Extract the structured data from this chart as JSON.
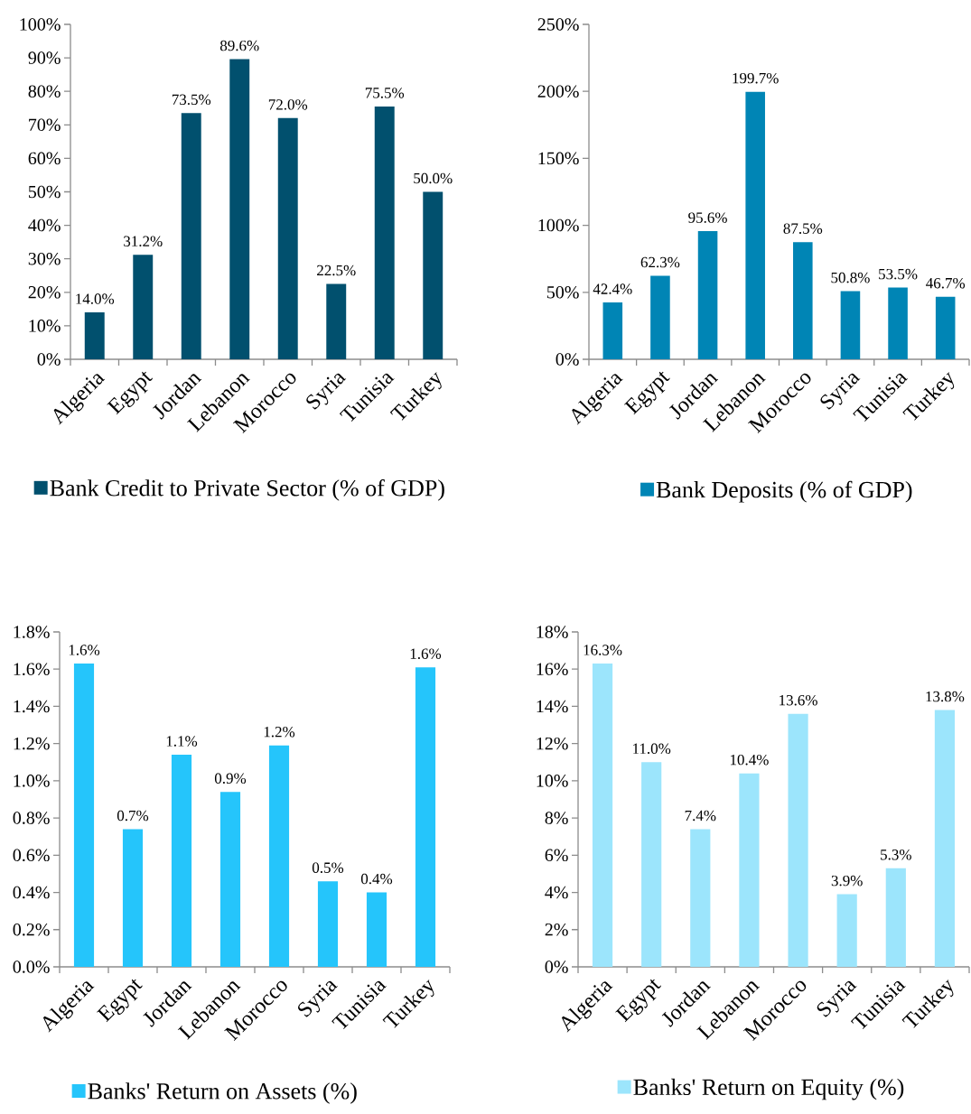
{
  "chart_data": [
    {
      "type": "bar",
      "categories": [
        "Algeria",
        "Egypt",
        "Jordan",
        "Lebanon",
        "Morocco",
        "Syria",
        "Tunisia",
        "Turkey"
      ],
      "series": [
        {
          "name": "Bank Credit to Private Sector (% of GDP)",
          "color": "#01506e",
          "values": [
            14.0,
            31.2,
            73.5,
            89.6,
            72.0,
            22.5,
            75.5,
            50.0
          ],
          "value_labels": [
            "14.0%",
            "31.2%",
            "73.5%",
            "89.6%",
            "72.0%",
            "22.5%",
            "75.5%",
            "50.0%"
          ]
        }
      ],
      "ylim": [
        0,
        100
      ],
      "yticks": [
        {
          "value": 0,
          "label": "0%"
        },
        {
          "value": 10,
          "label": "10%"
        },
        {
          "value": 20,
          "label": "20%"
        },
        {
          "value": 30,
          "label": "30%"
        },
        {
          "value": 40,
          "label": "40%"
        },
        {
          "value": 50,
          "label": "50%"
        },
        {
          "value": 60,
          "label": "60%"
        },
        {
          "value": 70,
          "label": "70%"
        },
        {
          "value": 80,
          "label": "80%"
        },
        {
          "value": 90,
          "label": "90%"
        },
        {
          "value": 100,
          "label": "100%"
        }
      ],
      "legend": "bottom"
    },
    {
      "type": "bar",
      "categories": [
        "Algeria",
        "Egypt",
        "Jordan",
        "Lebanon",
        "Morocco",
        "Syria",
        "Tunisia",
        "Turkey"
      ],
      "series": [
        {
          "name": "Bank Deposits (% of GDP)",
          "color": "#0085b5",
          "values": [
            42.4,
            62.3,
            95.6,
            199.7,
            87.5,
            50.8,
            53.5,
            46.7
          ],
          "value_labels": [
            "42.4%",
            "62.3%",
            "95.6%",
            "199.7%",
            "87.5%",
            "50.8%",
            "53.5%",
            "46.7%"
          ]
        }
      ],
      "ylim": [
        0,
        250
      ],
      "yticks": [
        {
          "value": 0,
          "label": "0%"
        },
        {
          "value": 50,
          "label": "50%"
        },
        {
          "value": 100,
          "label": "100%"
        },
        {
          "value": 150,
          "label": "150%"
        },
        {
          "value": 200,
          "label": "200%"
        },
        {
          "value": 250,
          "label": "250%"
        }
      ],
      "legend": "bottom"
    },
    {
      "type": "bar",
      "categories": [
        "Algeria",
        "Egypt",
        "Jordan",
        "Lebanon",
        "Morocco",
        "Syria",
        "Tunisia",
        "Turkey"
      ],
      "series": [
        {
          "name": "Banks' Return on Assets (%)",
          "color": "#25c5fb",
          "values": [
            1.63,
            0.74,
            1.14,
            0.94,
            1.19,
            0.46,
            0.4,
            1.61
          ],
          "value_labels": [
            "1.6%",
            "0.7%",
            "1.1%",
            "0.9%",
            "1.2%",
            "0.5%",
            "0.4%",
            "1.6%"
          ]
        }
      ],
      "ylim": [
        0,
        1.8
      ],
      "yticks": [
        {
          "value": 0,
          "label": "0.0%"
        },
        {
          "value": 0.2,
          "label": "0.2%"
        },
        {
          "value": 0.4,
          "label": "0.4%"
        },
        {
          "value": 0.6,
          "label": "0.6%"
        },
        {
          "value": 0.8,
          "label": "0.8%"
        },
        {
          "value": 1.0,
          "label": "1.0%"
        },
        {
          "value": 1.2,
          "label": "1.2%"
        },
        {
          "value": 1.4,
          "label": "1.4%"
        },
        {
          "value": 1.6,
          "label": "1.6%"
        },
        {
          "value": 1.8,
          "label": "1.8%"
        }
      ],
      "legend": "bottom"
    },
    {
      "type": "bar",
      "categories": [
        "Algeria",
        "Egypt",
        "Jordan",
        "Lebanon",
        "Morocco",
        "Syria",
        "Tunisia",
        "Turkey"
      ],
      "series": [
        {
          "name": "Banks' Return on Equity (%)",
          "color": "#9ce5fc",
          "values": [
            16.3,
            11.0,
            7.4,
            10.4,
            13.6,
            3.9,
            5.3,
            13.8
          ],
          "value_labels": [
            "16.3%",
            "11.0%",
            "7.4%",
            "10.4%",
            "13.6%",
            "3.9%",
            "5.3%",
            "13.8%"
          ]
        }
      ],
      "ylim": [
        0,
        18
      ],
      "yticks": [
        {
          "value": 0,
          "label": "0%"
        },
        {
          "value": 2,
          "label": "2%"
        },
        {
          "value": 4,
          "label": "4%"
        },
        {
          "value": 6,
          "label": "6%"
        },
        {
          "value": 8,
          "label": "8%"
        },
        {
          "value": 10,
          "label": "10%"
        },
        {
          "value": 12,
          "label": "12%"
        },
        {
          "value": 14,
          "label": "14%"
        },
        {
          "value": 16,
          "label": "16%"
        },
        {
          "value": 18,
          "label": "18%"
        }
      ],
      "legend": "bottom"
    }
  ]
}
